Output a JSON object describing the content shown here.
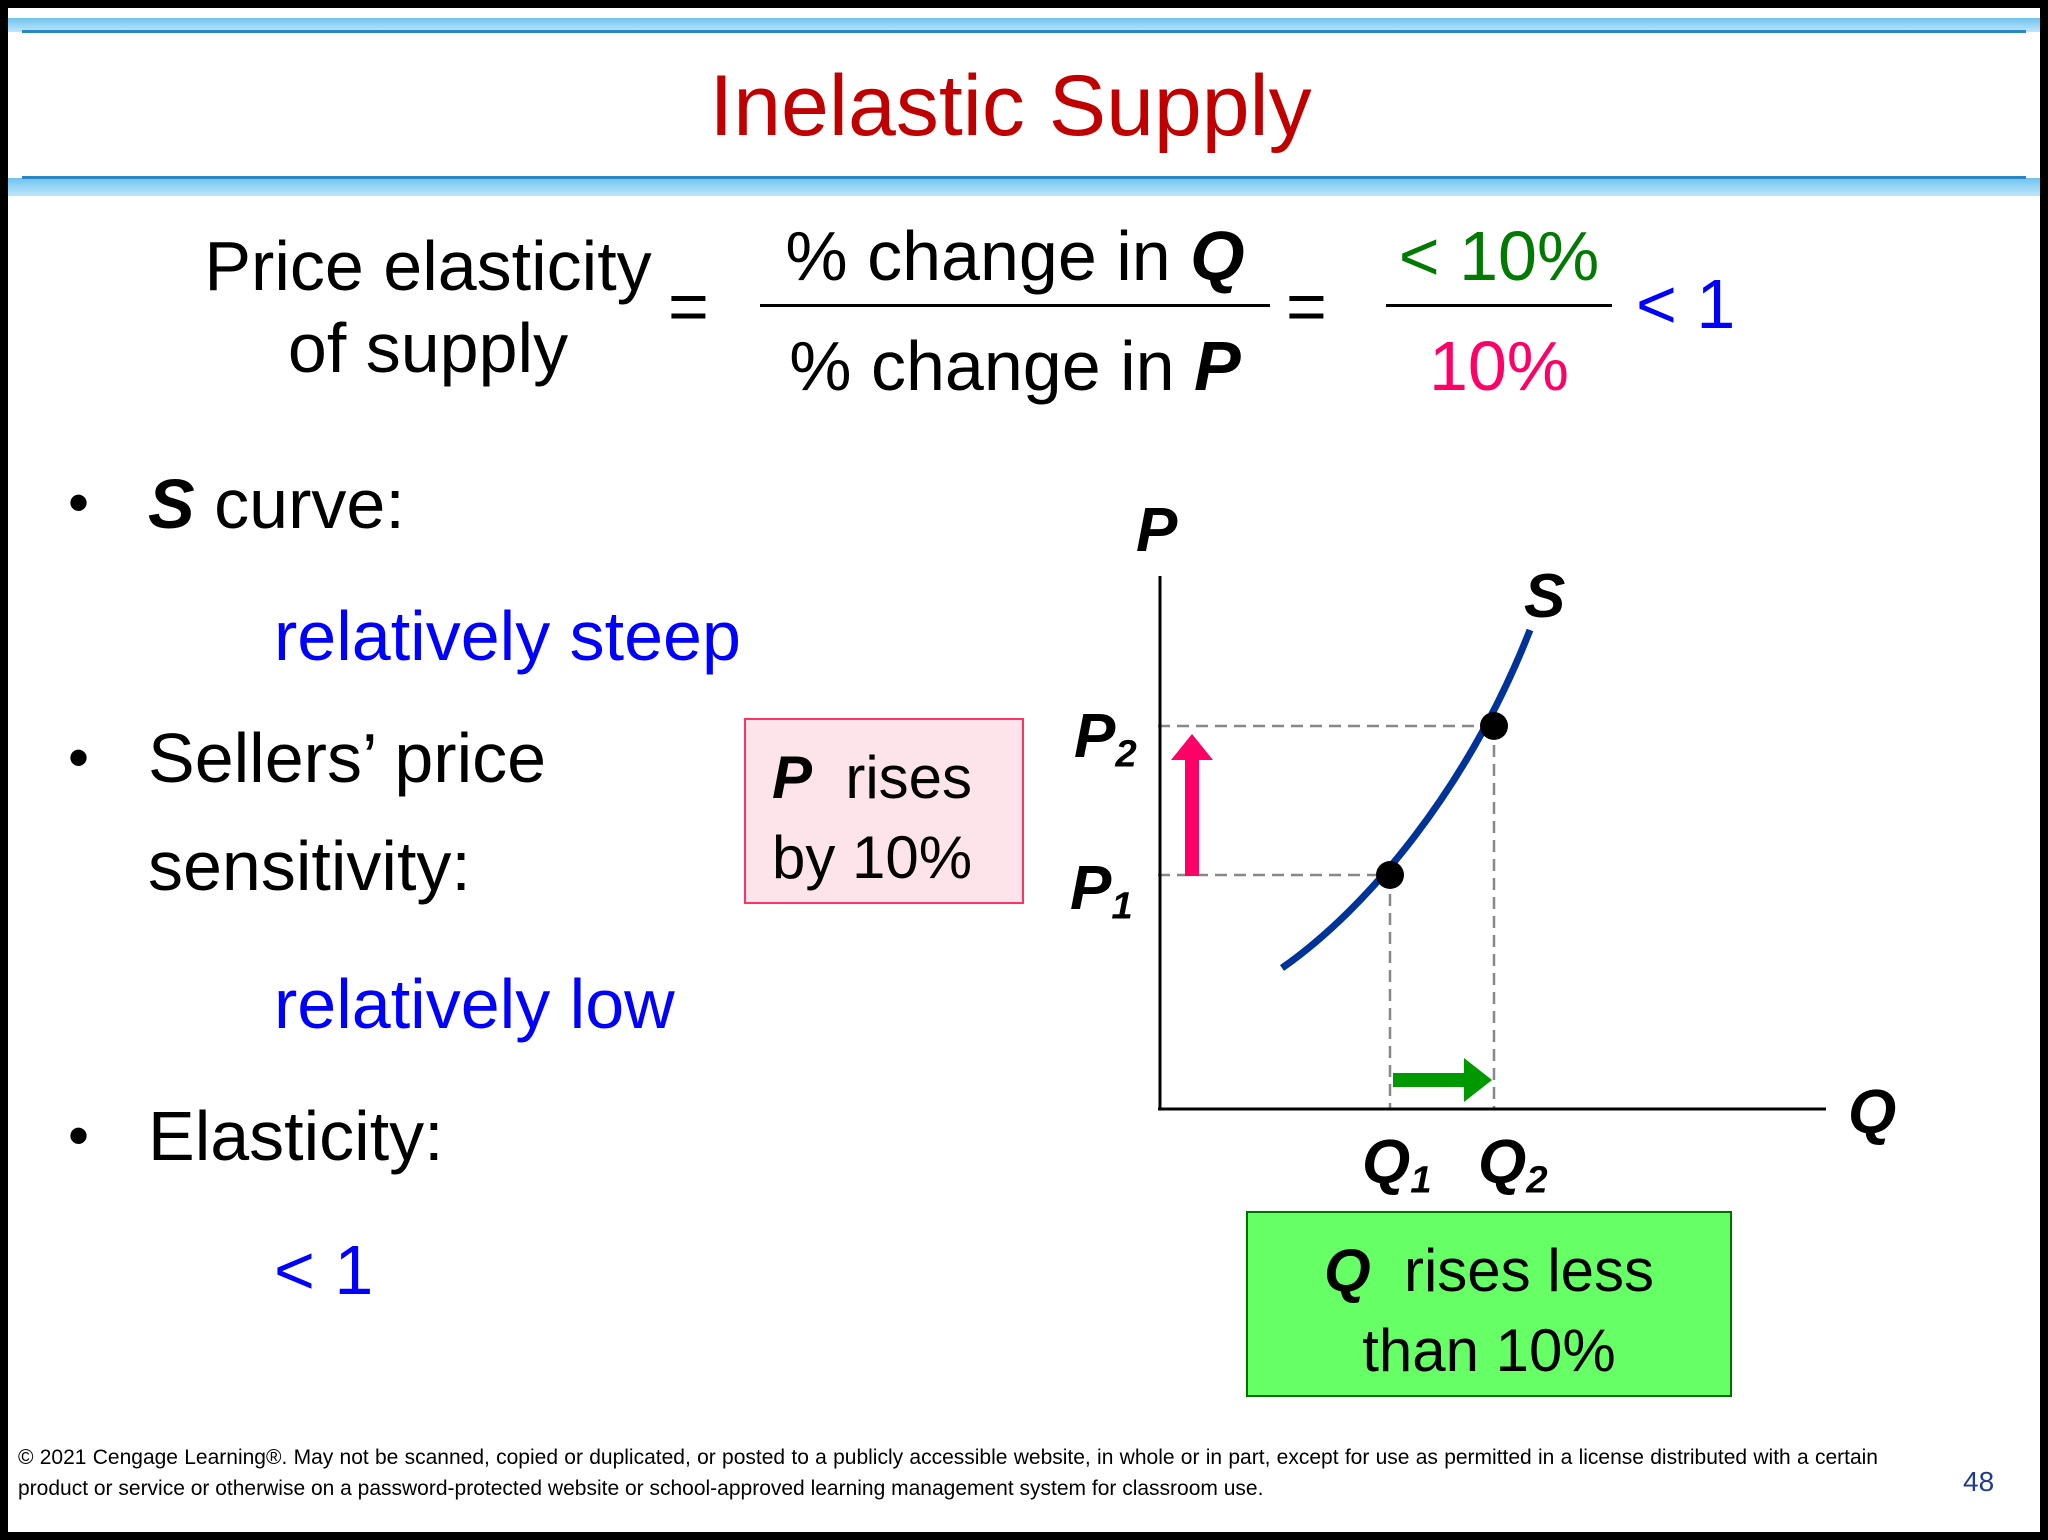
{
  "title": "Inelastic Supply",
  "formula": {
    "lhs_line1": "Price elasticity",
    "lhs_line2": "of supply",
    "eq1": "=",
    "num_text": "% change in ",
    "num_var": "Q",
    "den_text": "% change in ",
    "den_var": "P",
    "eq2": "=",
    "num2": "< 10%",
    "den2": "10%",
    "result": "< 1"
  },
  "bullets": [
    {
      "label_var": "S",
      "label_rest": " curve:",
      "answer": "relatively steep"
    },
    {
      "label_line1": "Sellers’ price",
      "label_line2": "sensitivity:",
      "answer": "relatively low"
    },
    {
      "label": "Elasticity:",
      "answer": "< 1"
    }
  ],
  "bullet_char": "•",
  "callouts": {
    "price": {
      "var": "P",
      "line1_rest": "  rises",
      "line2": "by 10%"
    },
    "quantity": {
      "var": "Q",
      "line1_rest": "  rises less",
      "line2": "than 10%"
    }
  },
  "diagram": {
    "axis_y_label": "P",
    "axis_x_label": "Q",
    "curve_label": "S",
    "p1": {
      "base": "P",
      "sub": "1"
    },
    "p2": {
      "base": "P",
      "sub": "2"
    },
    "q1": {
      "base": "Q",
      "sub": "1"
    },
    "q2": {
      "base": "Q",
      "sub": "2"
    },
    "colors": {
      "curve": "#003399",
      "price_arrow": "#ff0066",
      "quantity_arrow": "#009900",
      "guides": "#888888"
    }
  },
  "footer": "© 2021 Cengage Learning®. May not be scanned, copied or duplicated, or posted to a publicly accessible website, in whole or in part, except for use as permitted in a license distributed with a certain product or service or otherwise on a password-protected website or school-approved learning management system for classroom use.",
  "page_number": "48"
}
